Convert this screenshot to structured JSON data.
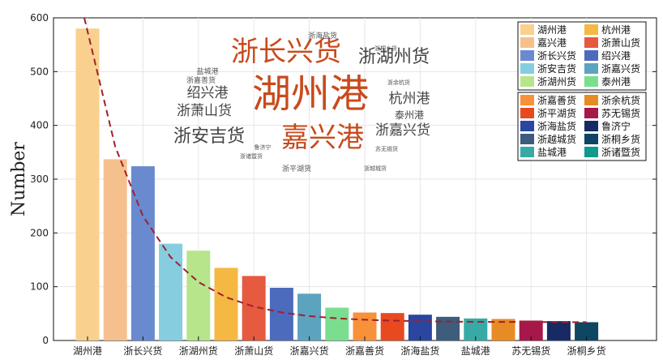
{
  "chart_data": {
    "type": "bar",
    "ylabel": "Number",
    "ylim": [
      0,
      600
    ],
    "yticks": [
      0,
      100,
      200,
      300,
      400,
      500,
      600
    ],
    "grid": true,
    "categories": [
      "湖州港",
      "嘉兴港",
      "浙长兴货",
      "浙安吉货",
      "浙湖州货",
      "杭州港",
      "浙萧山货",
      "绍兴港",
      "浙嘉兴货",
      "泰州港",
      "浙嘉善货",
      "浙平湖货",
      "浙海盐货",
      "浙越城货",
      "盐城港",
      "浙余杭货",
      "苏无锡货",
      "鲁济宁",
      "浙桐乡货"
    ],
    "values": [
      580,
      337,
      324,
      180,
      167,
      135,
      120,
      98,
      87,
      61,
      52,
      51,
      48,
      44,
      41,
      40,
      37,
      36,
      34
    ],
    "xtick_labels": [
      "湖州港",
      "浙长兴货",
      "浙湖州货",
      "浙萧山货",
      "浙嘉兴货",
      "浙嘉善货",
      "浙海盐货",
      "盐城港",
      "苏无锡货",
      "浙桐乡货"
    ],
    "colors": [
      "#f9d08e",
      "#f6c08e",
      "#6a8ad0",
      "#86cde0",
      "#b6e58c",
      "#f4b843",
      "#e65a3f",
      "#4d6bbd",
      "#5ca3c0",
      "#7ade8e",
      "#f7923a",
      "#e8491f",
      "#2a46a0",
      "#3e5c7c",
      "#38aaa6",
      "#e78c25",
      "#a6184a",
      "#172a63",
      "#0f4662"
    ],
    "trend_line": {
      "style": "dashed",
      "color": "#a0202c"
    },
    "legend": {
      "placement": "top-right",
      "box1": [
        [
          "湖州港",
          "杭州港"
        ],
        [
          "嘉兴港",
          "浙萧山货"
        ],
        [
          "浙长兴货",
          "绍兴港"
        ],
        [
          "浙安吉货",
          "浙嘉兴货"
        ],
        [
          "浙湖州货",
          "泰州港"
        ]
      ],
      "box2": [
        [
          "浙嘉善货",
          "浙余杭货"
        ],
        [
          "浙平湖货",
          "苏无锡货"
        ],
        [
          "浙海盐货",
          "鲁济宁"
        ],
        [
          "浙越城货",
          "浙桐乡货"
        ],
        [
          "盐城港",
          "浙诸暨货"
        ]
      ],
      "box1_colors": [
        [
          "#f9d08e",
          "#f4b843"
        ],
        [
          "#f6c08e",
          "#e65a3f"
        ],
        [
          "#6a8ad0",
          "#4d6bbd"
        ],
        [
          "#86cde0",
          "#5ca3c0"
        ],
        [
          "#b6e58c",
          "#7ade8e"
        ]
      ],
      "box2_colors": [
        [
          "#f7923a",
          "#e78c25"
        ],
        [
          "#e8491f",
          "#a6184a"
        ],
        [
          "#2a46a0",
          "#172a63"
        ],
        [
          "#3e5c7c",
          "#0f4662"
        ],
        [
          "#38aaa6",
          "#0f9a8e"
        ]
      ]
    },
    "wordcloud": [
      {
        "text": "湖州港",
        "color": "#c84a1c",
        "weight": "xl"
      },
      {
        "text": "浙长兴货",
        "color": "#c84a1c",
        "weight": "l"
      },
      {
        "text": "嘉兴港",
        "color": "#c84a1c",
        "weight": "l"
      },
      {
        "text": "浙湖州货",
        "color": "#444444",
        "weight": "m"
      },
      {
        "text": "浙安吉货",
        "color": "#444444",
        "weight": "m"
      },
      {
        "text": "浙萧山货",
        "color": "#444444",
        "weight": "s"
      },
      {
        "text": "杭州港",
        "color": "#444444",
        "weight": "s"
      },
      {
        "text": "绍兴港",
        "color": "#444444",
        "weight": "s"
      },
      {
        "text": "浙嘉兴货",
        "color": "#444444",
        "weight": "s"
      },
      {
        "text": "泰州港",
        "color": "#444444",
        "weight": "xs"
      },
      {
        "text": "浙海盐货",
        "color": "#555555",
        "weight": "xxs"
      },
      {
        "text": "盐城港",
        "color": "#555555",
        "weight": "xxs"
      },
      {
        "text": "浙嘉善货",
        "color": "#555555",
        "weight": "xxs"
      },
      {
        "text": "浙桐乡货",
        "color": "#555555",
        "weight": "xxxs"
      },
      {
        "text": "浙余杭货",
        "color": "#555555",
        "weight": "xxxs"
      },
      {
        "text": "鲁济宁",
        "color": "#555555",
        "weight": "xxxs"
      },
      {
        "text": "浙诸暨货",
        "color": "#555555",
        "weight": "xxxs"
      },
      {
        "text": "苏无锡货",
        "color": "#555555",
        "weight": "xxxs"
      },
      {
        "text": "浙平湖货",
        "color": "#555555",
        "weight": "xxs"
      },
      {
        "text": "浙越城货",
        "color": "#555555",
        "weight": "xxxs"
      }
    ]
  }
}
